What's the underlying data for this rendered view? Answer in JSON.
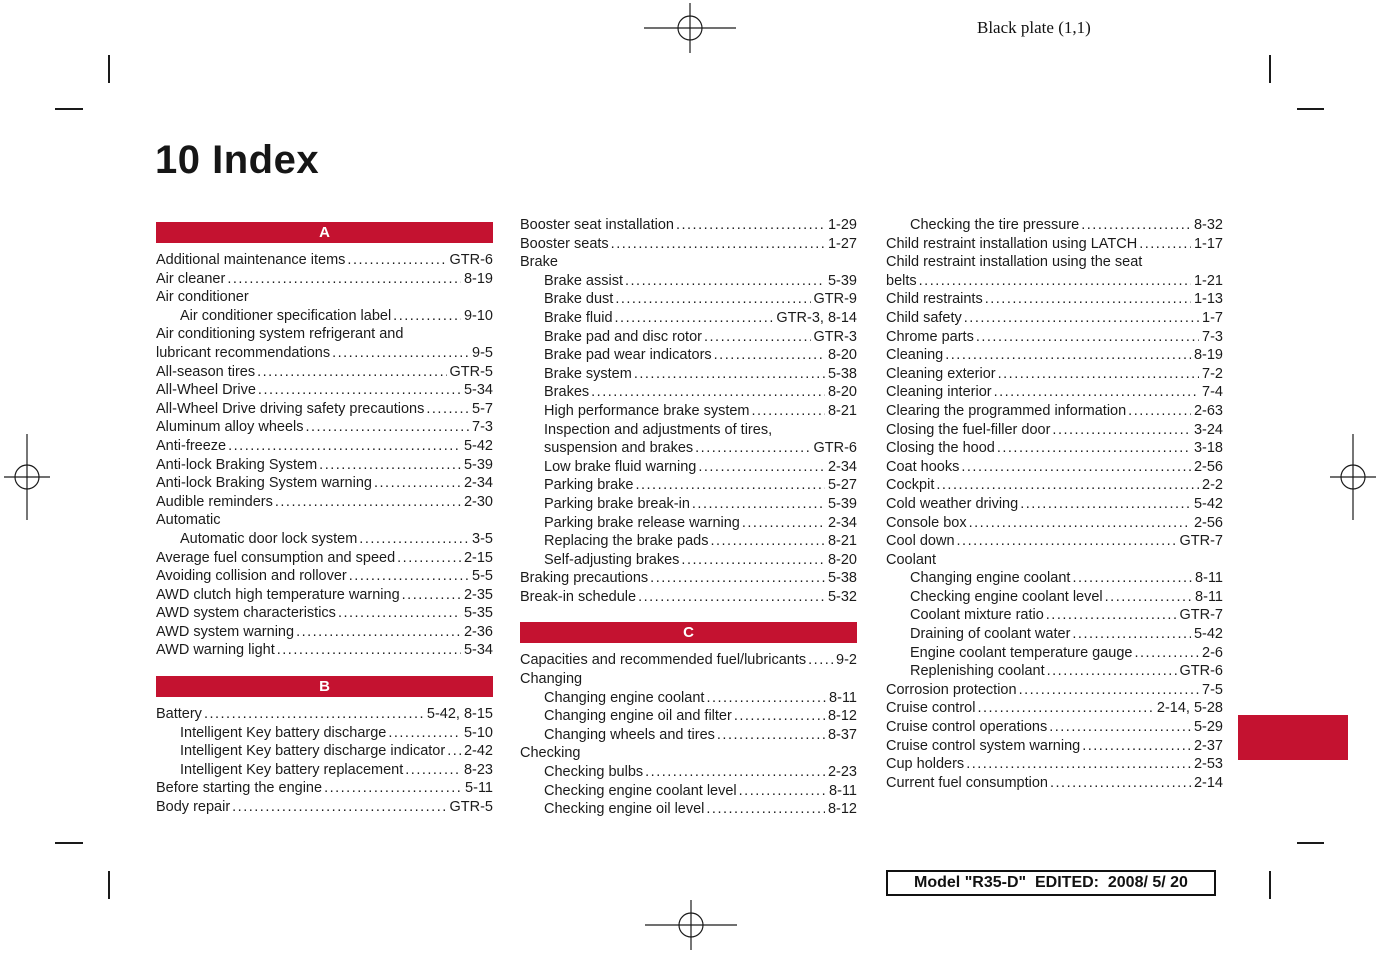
{
  "accent_color": "#c41230",
  "header": {
    "plate_label": "Black plate (1,1)"
  },
  "title": "10 Index",
  "footer": {
    "label": "Model \"R35-D\"  EDITED:  2008/ 5/ 20"
  },
  "columns": [
    {
      "blocks": [
        {
          "type": "section",
          "letter": "A"
        },
        {
          "type": "entries",
          "items": [
            {
              "label": "Additional maintenance items",
              "page": "GTR-6"
            },
            {
              "label": "Air cleaner",
              "page": "8-19"
            },
            {
              "label": "Air conditioner"
            },
            {
              "label": "Air conditioner specification label",
              "page": "9-10",
              "indent": 1
            },
            {
              "label": "Air conditioning system refrigerant and",
              "cont": "lubricant recommendations",
              "page": "9-5"
            },
            {
              "label": "All-season tires",
              "page": "GTR-5"
            },
            {
              "label": "All-Wheel Drive",
              "page": "5-34"
            },
            {
              "label": "All-Wheel Drive driving safety precautions",
              "page": "5-7"
            },
            {
              "label": "Aluminum alloy wheels",
              "page": "7-3"
            },
            {
              "label": "Anti-freeze",
              "page": "5-42"
            },
            {
              "label": "Anti-lock Braking System",
              "page": "5-39"
            },
            {
              "label": "Anti-lock Braking System warning",
              "page": "2-34"
            },
            {
              "label": "Audible reminders",
              "page": "2-30"
            },
            {
              "label": "Automatic"
            },
            {
              "label": "Automatic door lock system",
              "page": "3-5",
              "indent": 1
            },
            {
              "label": "Average fuel consumption and speed",
              "page": "2-15"
            },
            {
              "label": "Avoiding collision and rollover",
              "page": "5-5"
            },
            {
              "label": "AWD clutch high temperature warning",
              "page": "2-35"
            },
            {
              "label": "AWD system characteristics",
              "page": "5-35"
            },
            {
              "label": "AWD system warning",
              "page": "2-36"
            },
            {
              "label": "AWD warning light",
              "page": "5-34"
            }
          ]
        },
        {
          "type": "section",
          "letter": "B"
        },
        {
          "type": "entries",
          "items": [
            {
              "label": "Battery",
              "page": "5-42, 8-15"
            },
            {
              "label": "Intelligent Key battery discharge",
              "page": "5-10",
              "indent": 1
            },
            {
              "label": "Intelligent Key battery discharge indicator",
              "page": "2-42",
              "indent": 1
            },
            {
              "label": "Intelligent Key battery replacement",
              "page": "8-23",
              "indent": 1
            },
            {
              "label": "Before starting the engine",
              "page": "5-11"
            },
            {
              "label": "Body repair",
              "page": "GTR-5"
            }
          ]
        }
      ]
    },
    {
      "blocks": [
        {
          "type": "entries",
          "items": [
            {
              "label": "Booster seat installation",
              "page": "1-29"
            },
            {
              "label": "Booster seats",
              "page": "1-27"
            },
            {
              "label": "Brake"
            },
            {
              "label": "Brake assist",
              "page": "5-39",
              "indent": 1
            },
            {
              "label": "Brake dust",
              "page": "GTR-9",
              "indent": 1
            },
            {
              "label": "Brake fluid",
              "page": "GTR-3, 8-14",
              "indent": 1
            },
            {
              "label": "Brake pad and disc rotor",
              "page": "GTR-3",
              "indent": 1
            },
            {
              "label": "Brake pad wear indicators",
              "page": "8-20",
              "indent": 1
            },
            {
              "label": "Brake system",
              "page": "5-38",
              "indent": 1
            },
            {
              "label": "Brakes",
              "page": "8-20",
              "indent": 1
            },
            {
              "label": "High performance brake system",
              "page": "8-21",
              "indent": 1
            },
            {
              "label": "Inspection and adjustments of tires,",
              "cont": "suspension and brakes",
              "page": "GTR-6",
              "indent": 1
            },
            {
              "label": "Low brake fluid warning",
              "page": "2-34",
              "indent": 1
            },
            {
              "label": "Parking brake",
              "page": "5-27",
              "indent": 1
            },
            {
              "label": "Parking brake break-in",
              "page": "5-39",
              "indent": 1
            },
            {
              "label": "Parking brake release warning",
              "page": "2-34",
              "indent": 1
            },
            {
              "label": "Replacing the brake pads",
              "page": "8-21",
              "indent": 1
            },
            {
              "label": "Self-adjusting brakes",
              "page": "8-20",
              "indent": 1
            },
            {
              "label": "Braking precautions",
              "page": "5-38"
            },
            {
              "label": "Break-in schedule",
              "page": "5-32"
            }
          ]
        },
        {
          "type": "section",
          "letter": "C"
        },
        {
          "type": "entries",
          "items": [
            {
              "label": "Capacities and recommended fuel/lubricants",
              "page": "9-2"
            },
            {
              "label": "Changing"
            },
            {
              "label": "Changing engine coolant",
              "page": "8-11",
              "indent": 1
            },
            {
              "label": "Changing engine oil and filter",
              "page": "8-12",
              "indent": 1
            },
            {
              "label": "Changing wheels and tires",
              "page": "8-37",
              "indent": 1
            },
            {
              "label": "Checking"
            },
            {
              "label": "Checking bulbs",
              "page": "2-23",
              "indent": 1
            },
            {
              "label": "Checking engine coolant level",
              "page": "8-11",
              "indent": 1
            },
            {
              "label": "Checking engine oil level",
              "page": "8-12",
              "indent": 1
            }
          ]
        }
      ]
    },
    {
      "blocks": [
        {
          "type": "entries",
          "items": [
            {
              "label": "Checking the tire pressure",
              "page": "8-32",
              "indent": 1
            },
            {
              "label": "Child restraint installation using LATCH",
              "page": "1-17"
            },
            {
              "label": "Child restraint installation using the seat",
              "cont": "belts",
              "page": "1-21"
            },
            {
              "label": "Child restraints",
              "page": "1-13"
            },
            {
              "label": "Child safety",
              "page": "1-7"
            },
            {
              "label": "Chrome parts",
              "page": "7-3"
            },
            {
              "label": "Cleaning",
              "page": "8-19"
            },
            {
              "label": "Cleaning exterior",
              "page": "7-2"
            },
            {
              "label": "Cleaning interior",
              "page": "7-4"
            },
            {
              "label": "Clearing the programmed information",
              "page": "2-63"
            },
            {
              "label": "Closing the fuel-filler door",
              "page": "3-24"
            },
            {
              "label": "Closing the hood",
              "page": "3-18"
            },
            {
              "label": "Coat hooks",
              "page": "2-56"
            },
            {
              "label": "Cockpit",
              "page": "2-2"
            },
            {
              "label": "Cold weather driving",
              "page": "5-42"
            },
            {
              "label": "Console box",
              "page": "2-56"
            },
            {
              "label": "Cool down",
              "page": "GTR-7"
            },
            {
              "label": "Coolant"
            },
            {
              "label": "Changing engine coolant",
              "page": "8-11",
              "indent": 1
            },
            {
              "label": "Checking engine coolant level",
              "page": "8-11",
              "indent": 1
            },
            {
              "label": "Coolant mixture ratio",
              "page": "GTR-7",
              "indent": 1
            },
            {
              "label": "Draining of coolant water",
              "page": "5-42",
              "indent": 1
            },
            {
              "label": "Engine coolant temperature gauge",
              "page": "2-6",
              "indent": 1
            },
            {
              "label": "Replenishing coolant",
              "page": "GTR-6",
              "indent": 1
            },
            {
              "label": "Corrosion protection",
              "page": "7-5"
            },
            {
              "label": "Cruise control",
              "page": "2-14, 5-28"
            },
            {
              "label": "Cruise control operations",
              "page": "5-29"
            },
            {
              "label": "Cruise control system warning",
              "page": "2-37"
            },
            {
              "label": "Cup holders",
              "page": "2-53"
            },
            {
              "label": "Current fuel consumption",
              "page": "2-14"
            }
          ]
        }
      ]
    }
  ]
}
